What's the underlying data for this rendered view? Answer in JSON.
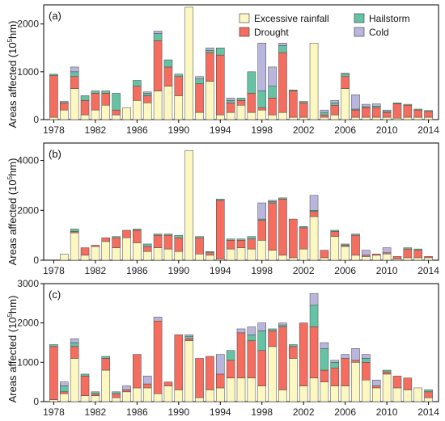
{
  "colors": {
    "Excessive rainfall": "#fdf8c2",
    "Drought": "#f46d5e",
    "Hailstorm": "#66c2a5",
    "Cold": "#b9b6de"
  },
  "legend": {
    "entries": [
      "Excessive rainfall",
      "Hailstorm",
      "Drought",
      "Cold"
    ]
  },
  "chart_data": [
    {
      "type": "bar",
      "stacked": true,
      "label": "(a)",
      "ylabel": "Areas affected (10^5hm)",
      "ylim": [
        0,
        2400
      ],
      "yticks": [
        0,
        1000,
        2000
      ],
      "xticks": [
        "1978",
        "1982",
        "1986",
        "1990",
        "1994",
        "1998",
        "2002",
        "2006",
        "2010",
        "2014"
      ],
      "categories": [
        1978,
        1979,
        1980,
        1981,
        1982,
        1983,
        1984,
        1985,
        1986,
        1987,
        1988,
        1989,
        1990,
        1991,
        1992,
        1993,
        1994,
        1995,
        1996,
        1997,
        1998,
        1999,
        2000,
        2001,
        2002,
        2003,
        2004,
        2005,
        2006,
        2007,
        2008,
        2009,
        2010,
        2011,
        2012,
        2013,
        2014
      ],
      "series": [
        {
          "name": "Excessive rainfall",
          "values": [
            50,
            200,
            650,
            100,
            200,
            300,
            100,
            250,
            400,
            350,
            600,
            700,
            500,
            2350,
            150,
            800,
            100,
            150,
            300,
            150,
            200,
            100,
            150,
            50,
            50,
            1600,
            50,
            100,
            650,
            50,
            50,
            50,
            50,
            30,
            50,
            50,
            50
          ]
        },
        {
          "name": "Drought",
          "values": [
            870,
            150,
            250,
            300,
            350,
            250,
            100,
            0,
            300,
            150,
            1050,
            400,
            400,
            0,
            600,
            600,
            1250,
            200,
            100,
            400,
            50,
            350,
            1250,
            550,
            300,
            0,
            50,
            200,
            250,
            150,
            200,
            200,
            100,
            300,
            250,
            150,
            120
          ]
        },
        {
          "name": "Hailstorm",
          "values": [
            30,
            30,
            100,
            100,
            50,
            50,
            350,
            0,
            120,
            50,
            150,
            150,
            50,
            0,
            100,
            50,
            150,
            50,
            50,
            450,
            350,
            250,
            150,
            20,
            30,
            0,
            50,
            50,
            50,
            20,
            20,
            30,
            20,
            20,
            20,
            20,
            20
          ]
        },
        {
          "name": "Cold",
          "values": [
            0,
            0,
            100,
            0,
            0,
            0,
            0,
            0,
            0,
            30,
            50,
            0,
            0,
            0,
            50,
            50,
            0,
            50,
            0,
            0,
            1000,
            400,
            50,
            0,
            0,
            0,
            50,
            50,
            20,
            300,
            50,
            50,
            30,
            0,
            0,
            0,
            0
          ]
        }
      ]
    },
    {
      "type": "bar",
      "stacked": true,
      "label": "(b)",
      "ylabel": "Areas affected (10^5hm)",
      "ylim": [
        0,
        4700
      ],
      "yticks": [
        0,
        2000,
        4000
      ],
      "xticks": [
        "1978",
        "1982",
        "1986",
        "1990",
        "1994",
        "1998",
        "2002",
        "2006",
        "2010",
        "2014"
      ],
      "categories": [
        1978,
        1979,
        1980,
        1981,
        1982,
        1983,
        1984,
        1985,
        1986,
        1987,
        1988,
        1989,
        1990,
        1991,
        1992,
        1993,
        1994,
        1995,
        1996,
        1997,
        1998,
        1999,
        2000,
        2001,
        2002,
        2003,
        2004,
        2005,
        2006,
        2007,
        2008,
        2009,
        2010,
        2011,
        2012,
        2013,
        2014
      ],
      "series": [
        {
          "name": "Excessive rainfall",
          "values": [
            0,
            250,
            1100,
            200,
            550,
            750,
            500,
            900,
            700,
            350,
            500,
            450,
            350,
            4400,
            250,
            200,
            50,
            450,
            500,
            450,
            800,
            400,
            200,
            100,
            450,
            1750,
            100,
            950,
            550,
            200,
            150,
            200,
            250,
            50,
            100,
            100,
            100
          ]
        },
        {
          "name": "Drought",
          "values": [
            0,
            0,
            50,
            300,
            50,
            150,
            400,
            300,
            500,
            200,
            500,
            550,
            550,
            0,
            650,
            100,
            2350,
            350,
            300,
            400,
            800,
            1900,
            2250,
            1550,
            850,
            200,
            300,
            200,
            50,
            800,
            50,
            50,
            50,
            100,
            350,
            300,
            50
          ]
        },
        {
          "name": "Hailstorm",
          "values": [
            0,
            0,
            100,
            0,
            0,
            0,
            50,
            0,
            50,
            100,
            50,
            50,
            100,
            0,
            50,
            50,
            50,
            50,
            50,
            100,
            50,
            50,
            50,
            0,
            50,
            50,
            0,
            50,
            50,
            50,
            0,
            0,
            0,
            0,
            50,
            50,
            0
          ]
        },
        {
          "name": "Cold",
          "values": [
            0,
            0,
            0,
            0,
            0,
            0,
            0,
            0,
            0,
            0,
            0,
            0,
            0,
            0,
            0,
            0,
            0,
            0,
            0,
            0,
            650,
            50,
            0,
            0,
            0,
            600,
            0,
            0,
            0,
            0,
            200,
            0,
            200,
            0,
            0,
            0,
            0
          ]
        }
      ]
    },
    {
      "type": "bar",
      "stacked": true,
      "label": "(c)",
      "ylabel": "Areas affected (10^5hm)",
      "ylim": [
        0,
        3000
      ],
      "yticks": [
        0,
        1000,
        2000,
        3000
      ],
      "xticks": [
        "1978",
        "1982",
        "1986",
        "1990",
        "1994",
        "1998",
        "2002",
        "2006",
        "2010",
        "2014"
      ],
      "categories": [
        1978,
        1979,
        1980,
        1981,
        1982,
        1983,
        1984,
        1985,
        1986,
        1987,
        1988,
        1989,
        1990,
        1991,
        1992,
        1993,
        1994,
        1995,
        1996,
        1997,
        1998,
        1999,
        2000,
        2001,
        2002,
        2003,
        2004,
        2005,
        2006,
        2007,
        2008,
        2009,
        2010,
        2011,
        2012,
        2013,
        2014
      ],
      "series": [
        {
          "name": "Excessive rainfall",
          "values": [
            50,
            200,
            1100,
            150,
            150,
            800,
            100,
            250,
            350,
            350,
            200,
            400,
            300,
            1550,
            100,
            300,
            350,
            600,
            600,
            600,
            400,
            1400,
            300,
            1100,
            400,
            600,
            500,
            400,
            400,
            1000,
            550,
            350,
            700,
            350,
            300,
            350,
            100
          ]
        },
        {
          "name": "Drought",
          "values": [
            1350,
            50,
            300,
            500,
            50,
            300,
            100,
            50,
            850,
            100,
            1850,
            100,
            1400,
            50,
            1000,
            850,
            350,
            450,
            1150,
            950,
            900,
            400,
            1600,
            300,
            1600,
            1300,
            300,
            450,
            700,
            50,
            450,
            50,
            50,
            300,
            300,
            0,
            150
          ]
        },
        {
          "name": "Hailstorm",
          "values": [
            50,
            150,
            100,
            50,
            50,
            50,
            50,
            0,
            0,
            0,
            0,
            0,
            0,
            50,
            0,
            0,
            0,
            250,
            0,
            150,
            500,
            50,
            50,
            50,
            0,
            550,
            550,
            150,
            0,
            0,
            100,
            0,
            50,
            0,
            0,
            0,
            50
          ]
        },
        {
          "name": "Cold",
          "values": [
            0,
            100,
            100,
            0,
            0,
            0,
            0,
            100,
            0,
            200,
            100,
            0,
            0,
            50,
            0,
            0,
            500,
            0,
            100,
            200,
            200,
            0,
            50,
            0,
            0,
            300,
            150,
            50,
            100,
            300,
            100,
            150,
            0,
            0,
            0,
            0,
            0
          ]
        }
      ]
    }
  ]
}
